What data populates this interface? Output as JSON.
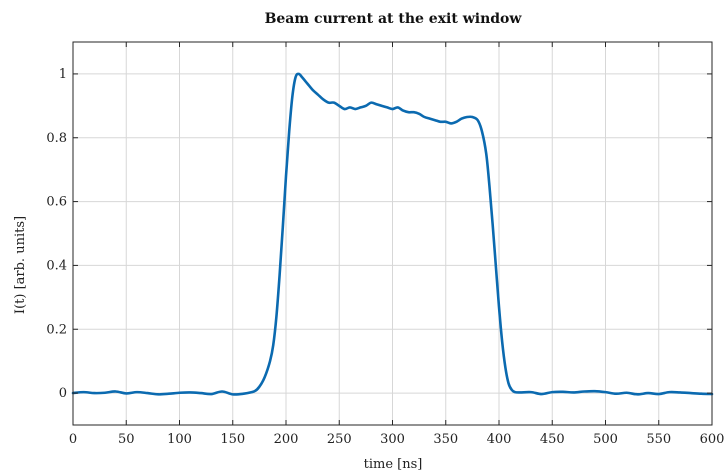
{
  "chart_data": {
    "type": "line",
    "title": "Beam current at the exit window",
    "xlabel": "time [ns]",
    "ylabel": "I(t) [arb. units]",
    "xlim": [
      0,
      600
    ],
    "ylim": [
      -0.1,
      1.1
    ],
    "xticks": [
      0,
      50,
      100,
      150,
      200,
      250,
      300,
      350,
      400,
      450,
      500,
      550,
      600
    ],
    "yticks": [
      0,
      0.2,
      0.4,
      0.6,
      0.8,
      1
    ],
    "ytick_labels": [
      "0",
      "0.2",
      "0.4",
      "0.6",
      "0.8",
      "1"
    ],
    "grid": true,
    "line_color": "#0b6ab0",
    "series": [
      {
        "x": [
          0,
          10,
          20,
          30,
          40,
          50,
          60,
          70,
          80,
          90,
          100,
          110,
          120,
          130,
          140,
          150,
          160,
          170,
          175,
          180,
          185,
          188,
          191,
          194,
          197,
          200,
          203,
          206,
          209,
          212,
          215,
          220,
          225,
          230,
          235,
          240,
          245,
          250,
          255,
          260,
          265,
          270,
          275,
          280,
          285,
          290,
          295,
          300,
          305,
          310,
          315,
          320,
          325,
          330,
          335,
          340,
          345,
          350,
          355,
          360,
          365,
          370,
          375,
          380,
          384,
          388,
          391,
          394,
          397,
          400,
          403,
          406,
          409,
          412,
          415,
          420,
          430,
          440,
          450,
          460,
          470,
          480,
          490,
          500,
          510,
          520,
          530,
          540,
          550,
          560,
          570,
          580,
          590,
          600
        ],
        "y": [
          0.0,
          0.003,
          0.0,
          0.001,
          0.005,
          -0.001,
          0.003,
          0.0,
          -0.004,
          -0.002,
          0.001,
          0.002,
          0.0,
          -0.003,
          0.005,
          -0.004,
          -0.002,
          0.005,
          0.02,
          0.05,
          0.1,
          0.15,
          0.24,
          0.37,
          0.52,
          0.68,
          0.82,
          0.93,
          0.99,
          1.0,
          0.99,
          0.97,
          0.95,
          0.935,
          0.92,
          0.91,
          0.91,
          0.9,
          0.89,
          0.895,
          0.89,
          0.895,
          0.9,
          0.91,
          0.905,
          0.9,
          0.895,
          0.89,
          0.895,
          0.885,
          0.88,
          0.88,
          0.875,
          0.865,
          0.86,
          0.855,
          0.85,
          0.85,
          0.845,
          0.85,
          0.86,
          0.865,
          0.865,
          0.855,
          0.82,
          0.75,
          0.65,
          0.53,
          0.4,
          0.27,
          0.16,
          0.08,
          0.03,
          0.01,
          0.003,
          0.002,
          0.003,
          -0.003,
          0.003,
          0.004,
          0.002,
          0.005,
          0.006,
          0.003,
          -0.002,
          0.001,
          -0.004,
          0.0,
          -0.003,
          0.003,
          0.002,
          0.0,
          -0.002,
          -0.003
        ]
      }
    ]
  }
}
